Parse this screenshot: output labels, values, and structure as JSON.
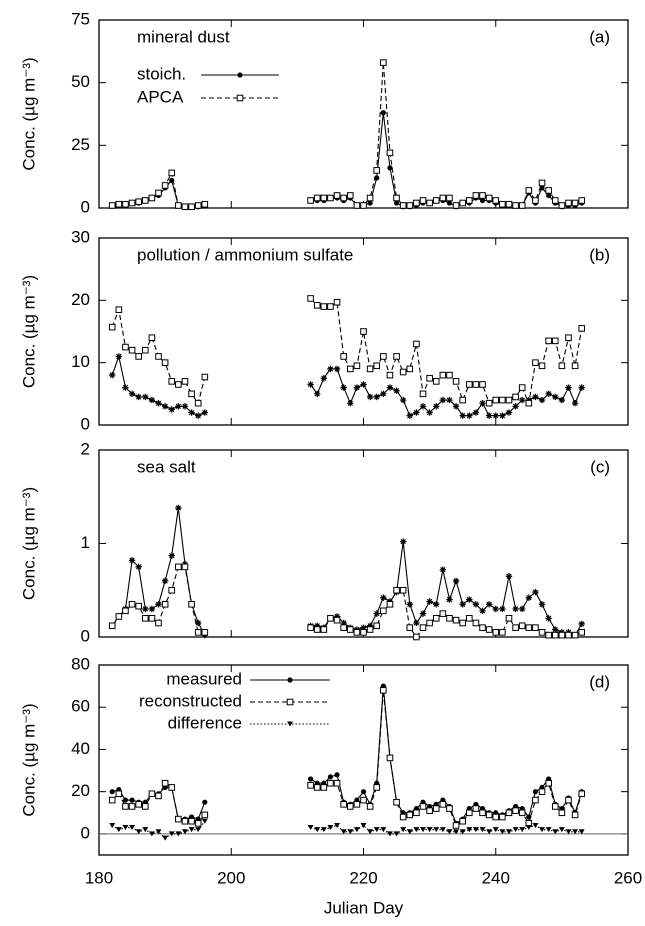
{
  "chart_data": [
    {
      "type": "line",
      "title": "mineral dust",
      "annotation": "(a)",
      "ylabel": "Conc. (µg m⁻³)",
      "x": [
        182,
        183,
        184,
        185,
        186,
        187,
        188,
        189,
        190,
        191,
        192,
        193,
        194,
        195,
        196,
        null,
        212,
        213,
        214,
        215,
        216,
        217,
        218,
        219,
        220,
        221,
        222,
        223,
        224,
        225,
        226,
        227,
        228,
        229,
        230,
        231,
        232,
        233,
        234,
        235,
        236,
        237,
        238,
        239,
        240,
        241,
        242,
        243,
        244,
        245,
        246,
        247,
        248,
        249,
        250,
        251,
        252,
        253
      ],
      "xlim": [
        180,
        260
      ],
      "xticks": [
        180,
        200,
        220,
        240,
        260
      ],
      "ylim": [
        0,
        75
      ],
      "yticks": [
        0,
        25,
        50,
        75
      ],
      "series": [
        {
          "name": "stoich.",
          "color": "#000000",
          "marker": "circle",
          "dash": "solid",
          "values": [
            1,
            1,
            1,
            2,
            2,
            3,
            4,
            5,
            8,
            11,
            1,
            0.5,
            0.5,
            0.5,
            1,
            null,
            3,
            3,
            3,
            4,
            4,
            3,
            4,
            1,
            1,
            2,
            12,
            38,
            16,
            2,
            0.5,
            0.5,
            1,
            2,
            2,
            3,
            3,
            2,
            0.5,
            2,
            2,
            4,
            3,
            3,
            2,
            1,
            1,
            1,
            1,
            6,
            2,
            8,
            5,
            2,
            0.5,
            1,
            1,
            2
          ]
        },
        {
          "name": "APCA",
          "color": "#000000",
          "marker": "square",
          "dash": "dashed",
          "values": [
            1,
            1.5,
            1.5,
            2,
            2.5,
            3,
            4,
            6,
            9,
            14,
            1,
            0.5,
            0.5,
            1,
            1.5,
            null,
            3,
            4,
            4,
            4,
            5,
            4,
            5,
            1,
            1,
            4,
            15,
            58,
            22,
            4,
            1,
            1,
            2,
            3,
            2,
            3,
            4,
            4,
            1,
            2,
            3,
            5,
            5,
            4,
            3,
            1.5,
            1.5,
            1,
            1,
            7,
            3,
            10,
            7,
            3,
            1,
            2,
            2,
            3
          ]
        }
      ]
    },
    {
      "type": "line",
      "title": "pollution / ammonium sulfate",
      "annotation": "(b)",
      "ylabel": "Conc. (µg m⁻³)",
      "x": [
        182,
        183,
        184,
        185,
        186,
        187,
        188,
        189,
        190,
        191,
        192,
        193,
        194,
        195,
        196,
        null,
        212,
        213,
        214,
        215,
        216,
        217,
        218,
        219,
        220,
        221,
        222,
        223,
        224,
        225,
        226,
        227,
        228,
        229,
        230,
        231,
        232,
        233,
        234,
        235,
        236,
        237,
        238,
        239,
        240,
        241,
        242,
        243,
        244,
        245,
        246,
        247,
        248,
        249,
        250,
        251,
        252,
        253
      ],
      "xlim": [
        180,
        260
      ],
      "xticks": [
        180,
        200,
        220,
        240,
        260
      ],
      "ylim": [
        0,
        30
      ],
      "yticks": [
        0,
        10,
        20,
        30
      ],
      "series": [
        {
          "color": "#000000",
          "marker": "star",
          "dash": "solid",
          "values": [
            8,
            11,
            6,
            5,
            4.5,
            4.5,
            4,
            3.5,
            3,
            2.5,
            3,
            3,
            2,
            1.5,
            2,
            null,
            6.5,
            5,
            7.5,
            9,
            9,
            6,
            3.5,
            6,
            6.5,
            4.5,
            4.5,
            5,
            6,
            5.5,
            4,
            1.5,
            2,
            3,
            2,
            3,
            4,
            4,
            3,
            1.5,
            1.5,
            2,
            3.5,
            1.5,
            1.5,
            1.5,
            2,
            3,
            4,
            4,
            4.5,
            4,
            5,
            4.5,
            4,
            6,
            3.5,
            6
          ]
        },
        {
          "color": "#000000",
          "marker": "square",
          "dash": "dashed",
          "values": [
            15.7,
            18.5,
            12.5,
            12,
            11,
            12,
            14,
            11,
            10,
            7,
            6.5,
            7,
            5,
            3.5,
            7.7,
            null,
            20.3,
            19.2,
            19,
            19,
            19.7,
            11,
            9,
            9.5,
            15,
            9,
            9.5,
            11,
            8,
            11,
            8.5,
            9,
            13,
            5,
            7.5,
            7,
            8,
            8,
            7,
            4,
            6.5,
            6.5,
            6.5,
            3.5,
            4,
            4,
            4,
            4.5,
            6,
            3.5,
            10,
            9.5,
            13.5,
            13.5,
            9.5,
            14,
            9.5,
            15.5
          ]
        }
      ]
    },
    {
      "type": "line",
      "title": "sea salt",
      "annotation": "(c)",
      "ylabel": "Conc. (µg m⁻³)",
      "x": [
        182,
        183,
        184,
        185,
        186,
        187,
        188,
        189,
        190,
        191,
        192,
        193,
        194,
        195,
        196,
        null,
        212,
        213,
        214,
        215,
        216,
        217,
        218,
        219,
        220,
        221,
        222,
        223,
        224,
        225,
        226,
        227,
        228,
        229,
        230,
        231,
        232,
        233,
        234,
        235,
        236,
        237,
        238,
        239,
        240,
        241,
        242,
        243,
        244,
        245,
        246,
        247,
        248,
        249,
        250,
        251,
        252,
        253
      ],
      "xlim": [
        180,
        260
      ],
      "xticks": [
        180,
        200,
        220,
        240,
        260
      ],
      "ylim": [
        0,
        2
      ],
      "yticks": [
        0,
        1,
        2
      ],
      "series": [
        {
          "color": "#000000",
          "marker": "star",
          "dash": "solid",
          "values": [
            0.12,
            0.22,
            0.3,
            0.82,
            0.75,
            0.3,
            0.3,
            0.35,
            0.6,
            0.87,
            1.38,
            0.78,
            0.35,
            0.15,
            0.02,
            null,
            0.12,
            0.12,
            0.1,
            0.2,
            0.22,
            0.15,
            0.1,
            0.08,
            0.1,
            0.12,
            0.25,
            0.42,
            0.38,
            0.48,
            1.02,
            0.35,
            0.15,
            0.25,
            0.38,
            0.35,
            0.72,
            0.4,
            0.6,
            0.35,
            0.4,
            0.35,
            0.28,
            0.35,
            0.3,
            0.3,
            0.65,
            0.3,
            0.3,
            0.42,
            0.48,
            0.35,
            0.2,
            0.08,
            0.05,
            0.05,
            0.02,
            0.14
          ]
        },
        {
          "color": "#000000",
          "marker": "square",
          "dash": "dashed",
          "values": [
            0.12,
            0.22,
            0.28,
            0.35,
            0.33,
            0.2,
            0.2,
            0.15,
            0.35,
            0.5,
            0.75,
            0.75,
            0.35,
            0.05,
            0.05,
            null,
            0.1,
            0.08,
            0.08,
            0.2,
            0.18,
            0.1,
            0.08,
            0.05,
            0.05,
            0.08,
            0.12,
            0.28,
            0.35,
            0.5,
            0.5,
            0.1,
            0,
            0.1,
            0.15,
            0.2,
            0.25,
            0.2,
            0.18,
            0.15,
            0.2,
            0.15,
            0.1,
            0.08,
            0.05,
            0.05,
            0.2,
            0.1,
            0.12,
            0.1,
            0.1,
            0.05,
            0.02,
            0.02,
            0.02,
            0.02,
            0.02,
            0.05
          ]
        }
      ]
    },
    {
      "type": "line",
      "annotation": "(d)",
      "ylabel": "Conc. (µg m⁻³)",
      "xlabel": "Julian Day",
      "x": [
        182,
        183,
        184,
        185,
        186,
        187,
        188,
        189,
        190,
        191,
        192,
        193,
        194,
        195,
        196,
        null,
        212,
        213,
        214,
        215,
        216,
        217,
        218,
        219,
        220,
        221,
        222,
        223,
        224,
        225,
        226,
        227,
        228,
        229,
        230,
        231,
        232,
        233,
        234,
        235,
        236,
        237,
        238,
        239,
        240,
        241,
        242,
        243,
        244,
        245,
        246,
        247,
        248,
        249,
        250,
        251,
        252,
        253
      ],
      "xlim": [
        180,
        260
      ],
      "xticks": [
        180,
        200,
        220,
        240,
        260
      ],
      "ylim": [
        -10,
        80
      ],
      "yticks": [
        0,
        20,
        40,
        60,
        80
      ],
      "zero_line": 0,
      "series": [
        {
          "name": "measured",
          "color": "#000000",
          "marker": "circle",
          "dash": "solid",
          "values": [
            20,
            21,
            16,
            16,
            15,
            15,
            19,
            19,
            22,
            22,
            7,
            7,
            8,
            7,
            15,
            null,
            26,
            24,
            24,
            27,
            28,
            15,
            14,
            16,
            20,
            14,
            24,
            70,
            36,
            15,
            10,
            10,
            12,
            15,
            13,
            14,
            16,
            13,
            5,
            7,
            12,
            14,
            12,
            10,
            10,
            9,
            11,
            13,
            12,
            8,
            20,
            22,
            26,
            14,
            12,
            17,
            10,
            20
          ]
        },
        {
          "name": "reconstructed",
          "color": "#000000",
          "marker": "square",
          "dash": "dashed",
          "values": [
            16,
            19,
            13,
            13,
            14,
            13,
            19,
            18,
            24,
            22,
            7,
            6,
            6,
            5,
            9,
            null,
            23,
            22,
            22,
            24,
            24,
            14,
            13,
            14,
            16,
            13,
            22,
            68,
            36,
            15,
            8,
            9,
            10,
            13,
            11,
            12,
            14,
            12,
            4,
            6,
            10,
            12,
            10,
            9,
            8,
            8,
            10,
            11,
            10,
            5,
            16,
            20,
            24,
            13,
            10,
            16,
            9,
            19
          ]
        },
        {
          "name": "difference",
          "color": "#000000",
          "marker": "triangle",
          "dash": "dotted",
          "values": [
            4,
            2,
            3,
            3,
            1,
            2,
            0,
            1,
            -2,
            0,
            0,
            1,
            2,
            2,
            6,
            null,
            3,
            2,
            2,
            3,
            4,
            1,
            1,
            2,
            4,
            1,
            2,
            2,
            0,
            0,
            2,
            1,
            2,
            2,
            2,
            2,
            2,
            1,
            1,
            1,
            2,
            2,
            2,
            1,
            2,
            1,
            1,
            2,
            2,
            3,
            4,
            2,
            2,
            1,
            2,
            1,
            1,
            1
          ]
        }
      ]
    }
  ]
}
